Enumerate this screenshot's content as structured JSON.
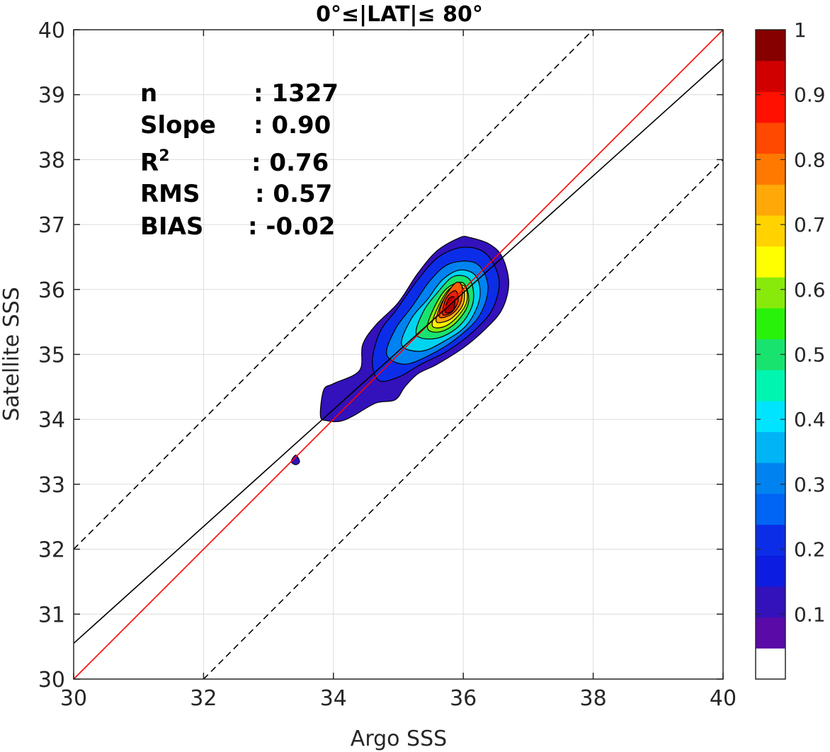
{
  "chart_data": {
    "type": "contour",
    "title": "0°≤|LAT|≤ 80°",
    "xlabel": "Argo SSS",
    "ylabel": "Satellite SSS",
    "xlim": [
      30,
      40
    ],
    "ylim": [
      30,
      40
    ],
    "xticks": [
      30,
      32,
      34,
      36,
      38,
      40
    ],
    "yticks": [
      30,
      31,
      32,
      33,
      34,
      35,
      36,
      37,
      38,
      39,
      40
    ],
    "grid": true,
    "stats": [
      {
        "label": "n",
        "value": ": 1327"
      },
      {
        "label": "Slope",
        "value": ": 0.90"
      },
      {
        "label": "R",
        "sup": "2",
        "value": ": 0.76"
      },
      {
        "label": "RMS",
        "value": ": 0.57"
      },
      {
        "label": "BIAS",
        "value": ": -0.02"
      }
    ],
    "lines": [
      {
        "name": "one-to-one",
        "color": "#ff0000",
        "style": "solid",
        "slope": 1.0,
        "intercept": 0.0
      },
      {
        "name": "regression",
        "color": "#000000",
        "style": "solid",
        "slope": 0.9,
        "intercept": 3.55
      },
      {
        "name": "upper-bound",
        "color": "#000000",
        "style": "dashed",
        "slope": 1.0,
        "intercept": 2.0
      },
      {
        "name": "lower-bound",
        "color": "#000000",
        "style": "dashed",
        "slope": 1.0,
        "intercept": -2.0
      }
    ],
    "density_peak": {
      "x": 35.8,
      "y": 35.75
    },
    "contour_levels": [
      {
        "level": 0.05,
        "color": "#3311bb",
        "points": [
          [
            33.8,
            34.05
          ],
          [
            33.85,
            34.45
          ],
          [
            34.0,
            34.55
          ],
          [
            34.4,
            34.75
          ],
          [
            34.45,
            35.15
          ],
          [
            34.65,
            35.45
          ],
          [
            35.0,
            35.8
          ],
          [
            35.3,
            36.25
          ],
          [
            35.6,
            36.6
          ],
          [
            35.95,
            36.8
          ],
          [
            36.1,
            36.8
          ],
          [
            36.4,
            36.7
          ],
          [
            36.6,
            36.5
          ],
          [
            36.7,
            36.1
          ],
          [
            36.6,
            35.7
          ],
          [
            36.35,
            35.4
          ],
          [
            36.0,
            35.1
          ],
          [
            35.6,
            34.85
          ],
          [
            35.3,
            34.7
          ],
          [
            35.1,
            34.5
          ],
          [
            34.95,
            34.3
          ],
          [
            34.65,
            34.25
          ],
          [
            34.3,
            34.05
          ],
          [
            34.1,
            33.97
          ],
          [
            33.9,
            33.98
          ]
        ]
      },
      {
        "level": 0.15,
        "color": "#0c2de8",
        "points": [
          [
            34.6,
            34.9
          ],
          [
            34.72,
            35.35
          ],
          [
            34.98,
            35.7
          ],
          [
            35.3,
            36.15
          ],
          [
            35.62,
            36.5
          ],
          [
            36.0,
            36.65
          ],
          [
            36.35,
            36.55
          ],
          [
            36.55,
            36.15
          ],
          [
            36.45,
            35.7
          ],
          [
            36.15,
            35.35
          ],
          [
            35.75,
            35.05
          ],
          [
            35.35,
            34.85
          ],
          [
            35.0,
            34.65
          ],
          [
            34.7,
            34.6
          ]
        ]
      },
      {
        "level": 0.25,
        "color": "#0083f0",
        "points": [
          [
            34.82,
            35.0
          ],
          [
            34.96,
            35.4
          ],
          [
            35.22,
            35.75
          ],
          [
            35.5,
            36.15
          ],
          [
            35.8,
            36.4
          ],
          [
            36.2,
            36.4
          ],
          [
            36.38,
            36.05
          ],
          [
            36.25,
            35.6
          ],
          [
            35.9,
            35.25
          ],
          [
            35.5,
            35.0
          ],
          [
            35.1,
            34.85
          ]
        ]
      },
      {
        "level": 0.35,
        "color": "#00d3f0",
        "points": [
          [
            35.05,
            35.15
          ],
          [
            35.2,
            35.55
          ],
          [
            35.45,
            35.85
          ],
          [
            35.68,
            36.15
          ],
          [
            35.95,
            36.3
          ],
          [
            36.2,
            36.2
          ],
          [
            36.25,
            35.85
          ],
          [
            36.05,
            35.45
          ],
          [
            35.7,
            35.2
          ],
          [
            35.35,
            35.05
          ]
        ]
      },
      {
        "level": 0.45,
        "color": "#19e36f",
        "points": [
          [
            35.28,
            35.3
          ],
          [
            35.38,
            35.65
          ],
          [
            35.6,
            35.95
          ],
          [
            35.85,
            36.2
          ],
          [
            36.1,
            36.15
          ],
          [
            36.15,
            35.8
          ],
          [
            35.95,
            35.45
          ],
          [
            35.6,
            35.25
          ]
        ]
      },
      {
        "level": 0.55,
        "color": "#88ea0b",
        "points": [
          [
            35.45,
            35.4
          ],
          [
            35.55,
            35.72
          ],
          [
            35.75,
            36.02
          ],
          [
            36.0,
            36.1
          ],
          [
            36.08,
            35.8
          ],
          [
            35.9,
            35.5
          ],
          [
            35.65,
            35.35
          ]
        ]
      },
      {
        "level": 0.65,
        "color": "#fff000",
        "points": [
          [
            35.52,
            35.45
          ],
          [
            35.62,
            35.75
          ],
          [
            35.8,
            36.02
          ],
          [
            36.02,
            36.05
          ],
          [
            36.05,
            35.8
          ],
          [
            35.88,
            35.55
          ],
          [
            35.68,
            35.42
          ]
        ]
      },
      {
        "level": 0.72,
        "color": "#ffa808",
        "points": [
          [
            35.58,
            35.52
          ],
          [
            35.67,
            35.8
          ],
          [
            35.85,
            36.05
          ],
          [
            36.0,
            36.02
          ],
          [
            36.0,
            35.78
          ],
          [
            35.85,
            35.58
          ],
          [
            35.7,
            35.5
          ]
        ]
      },
      {
        "level": 0.8,
        "color": "#ff5a00",
        "points": [
          [
            35.63,
            35.58
          ],
          [
            35.7,
            35.85
          ],
          [
            35.88,
            36.1
          ],
          [
            35.98,
            36.05
          ],
          [
            35.96,
            35.8
          ],
          [
            35.82,
            35.62
          ]
        ]
      },
      {
        "level": 0.88,
        "color": "#e8200a",
        "points": [
          [
            35.68,
            35.62
          ],
          [
            35.74,
            35.87
          ],
          [
            35.88,
            35.98
          ],
          [
            35.92,
            35.82
          ],
          [
            35.82,
            35.65
          ]
        ]
      },
      {
        "level": 0.95,
        "color": "#aa0000",
        "points": [
          [
            35.72,
            35.66
          ],
          [
            35.77,
            35.85
          ],
          [
            35.86,
            35.88
          ],
          [
            35.86,
            35.72
          ],
          [
            35.8,
            35.65
          ]
        ]
      }
    ],
    "outlier_blob": [
      [
        33.35,
        33.35
      ],
      [
        33.42,
        33.45
      ],
      [
        33.48,
        33.35
      ],
      [
        33.42,
        33.3
      ]
    ],
    "colorbar": {
      "ticks": [
        {
          "value": 0.1,
          "label": "0.1"
        },
        {
          "value": 0.2,
          "label": "0.2"
        },
        {
          "value": 0.3,
          "label": "0.3"
        },
        {
          "value": 0.4,
          "label": "0.4"
        },
        {
          "value": 0.5,
          "label": "0.5"
        },
        {
          "value": 0.6,
          "label": "0.6"
        },
        {
          "value": 0.7,
          "label": "0.7"
        },
        {
          "value": 0.8,
          "label": "0.8"
        },
        {
          "value": 0.9,
          "label": "0.9"
        },
        {
          "value": 1.0,
          "label": "1"
        }
      ],
      "bands": [
        "#ffffff",
        "#5a0aa6",
        "#3311bb",
        "#0c1ce0",
        "#0c2de8",
        "#0064f5",
        "#0083f0",
        "#00b4f5",
        "#00e4ff",
        "#00f5b0",
        "#19e36f",
        "#29f20a",
        "#88ea0b",
        "#ffff00",
        "#ffd200",
        "#ffa808",
        "#ff7800",
        "#ff4800",
        "#ff1000",
        "#d00000",
        "#870000"
      ]
    }
  }
}
